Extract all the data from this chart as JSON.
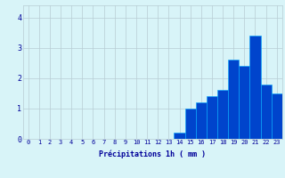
{
  "values": [
    0,
    0,
    0,
    0,
    0,
    0,
    0,
    0,
    0,
    0,
    0,
    0,
    0,
    0,
    0.2,
    1.0,
    1.2,
    1.4,
    1.6,
    2.6,
    2.4,
    3.4,
    1.8,
    1.5
  ],
  "bar_color": "#0044cc",
  "bar_edge_color": "#00aaff",
  "background_color": "#d8f4f8",
  "grid_color": "#b8cdd4",
  "xlabel": "Précipitations 1h ( mm )",
  "xlabel_color": "#000099",
  "tick_color": "#000099",
  "ylim": [
    0,
    4.4
  ],
  "yticks": [
    0,
    1,
    2,
    3,
    4
  ],
  "n_hours": 24,
  "tick_fontsize": 5.0,
  "xlabel_fontsize": 6.0,
  "ytick_fontsize": 6.0
}
